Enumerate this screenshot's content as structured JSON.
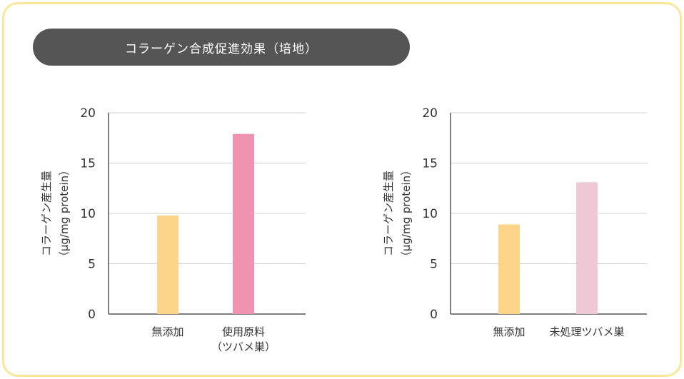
{
  "title": "コラーゲン合成促進効果（培地）",
  "colors": {
    "frame": "#fbe79a",
    "pill": "#555555",
    "grid": "#cfcfcf",
    "axis": "#555555"
  },
  "chart_data": [
    {
      "type": "bar",
      "ylabel_line1": "コラーゲン産生量",
      "ylabel_line2": "（μg/mg protein）",
      "ylim": [
        0,
        20
      ],
      "yticks": [
        0,
        5,
        10,
        15,
        20
      ],
      "grid": true,
      "categories": [
        {
          "lines": [
            "無添加"
          ]
        },
        {
          "lines": [
            "使用原料",
            "（ツバメ巣）"
          ]
        }
      ],
      "values": [
        9.8,
        17.9
      ],
      "bar_colors": [
        "#fcd58a",
        "#ef93b1"
      ]
    },
    {
      "type": "bar",
      "ylabel_line1": "コラーゲン産生量",
      "ylabel_line2": "（μg/mg protein）",
      "ylim": [
        0,
        20
      ],
      "yticks": [
        0,
        5,
        10,
        15,
        20
      ],
      "grid": true,
      "categories": [
        {
          "lines": [
            "無添加"
          ]
        },
        {
          "lines": [
            "未処理ツバメ巣"
          ]
        }
      ],
      "values": [
        8.9,
        13.1
      ],
      "bar_colors": [
        "#fcd58a",
        "#f0c9d7"
      ]
    }
  ]
}
